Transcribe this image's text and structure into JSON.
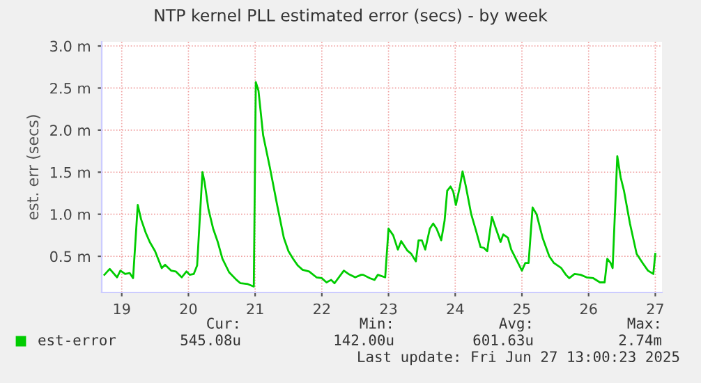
{
  "chart_data": {
    "type": "line",
    "title": "NTP kernel PLL estimated error (secs) - by week",
    "ylabel": "est. err (secs)",
    "x": [
      18.74,
      18.82,
      18.93,
      18.98,
      19.05,
      19.12,
      19.17,
      19.24,
      19.29,
      19.36,
      19.42,
      19.5,
      19.57,
      19.6,
      19.65,
      19.74,
      19.81,
      19.9,
      19.97,
      20.02,
      20.08,
      20.13,
      20.21,
      20.24,
      20.3,
      20.37,
      20.44,
      20.51,
      20.61,
      20.72,
      20.78,
      20.89,
      20.98,
      21.01,
      21.05,
      21.12,
      21.22,
      21.33,
      21.43,
      21.5,
      21.57,
      21.64,
      21.71,
      21.81,
      21.92,
      22.0,
      22.07,
      22.14,
      22.19,
      22.33,
      22.4,
      22.5,
      22.59,
      22.62,
      22.72,
      22.79,
      22.84,
      22.95,
      23.0,
      23.07,
      23.14,
      23.19,
      23.28,
      23.34,
      23.41,
      23.45,
      23.5,
      23.55,
      23.62,
      23.67,
      23.72,
      23.79,
      23.84,
      23.88,
      23.93,
      23.97,
      24.01,
      24.07,
      24.11,
      24.16,
      24.24,
      24.31,
      24.38,
      24.43,
      24.48,
      24.55,
      24.61,
      24.68,
      24.72,
      24.79,
      24.84,
      24.93,
      25.0,
      25.05,
      25.1,
      25.16,
      25.22,
      25.31,
      25.41,
      25.48,
      25.59,
      25.66,
      25.71,
      25.79,
      25.88,
      25.97,
      26.07,
      26.17,
      26.24,
      26.28,
      26.33,
      26.36,
      26.43,
      26.48,
      26.53,
      26.62,
      26.72,
      26.81,
      26.89,
      26.97,
      27.0
    ],
    "series": [
      {
        "name": "est-error",
        "color": "#00cc00",
        "values": [
          0.28,
          0.35,
          0.25,
          0.33,
          0.29,
          0.3,
          0.24,
          1.11,
          0.94,
          0.78,
          0.67,
          0.56,
          0.42,
          0.36,
          0.4,
          0.33,
          0.32,
          0.25,
          0.32,
          0.28,
          0.29,
          0.39,
          1.5,
          1.39,
          1.06,
          0.83,
          0.67,
          0.47,
          0.31,
          0.22,
          0.18,
          0.17,
          0.14,
          2.57,
          2.47,
          1.94,
          1.56,
          1.11,
          0.72,
          0.56,
          0.47,
          0.39,
          0.34,
          0.32,
          0.25,
          0.24,
          0.19,
          0.22,
          0.18,
          0.33,
          0.29,
          0.25,
          0.28,
          0.28,
          0.24,
          0.22,
          0.28,
          0.25,
          0.83,
          0.75,
          0.58,
          0.68,
          0.57,
          0.53,
          0.44,
          0.69,
          0.69,
          0.58,
          0.83,
          0.89,
          0.83,
          0.69,
          0.92,
          1.28,
          1.33,
          1.27,
          1.11,
          1.33,
          1.51,
          1.33,
          1.0,
          0.81,
          0.61,
          0.6,
          0.56,
          0.97,
          0.83,
          0.67,
          0.76,
          0.72,
          0.58,
          0.44,
          0.33,
          0.42,
          0.42,
          1.08,
          1.0,
          0.72,
          0.5,
          0.42,
          0.36,
          0.28,
          0.24,
          0.29,
          0.28,
          0.25,
          0.24,
          0.19,
          0.19,
          0.47,
          0.42,
          0.36,
          1.69,
          1.44,
          1.28,
          0.89,
          0.53,
          0.42,
          0.33,
          0.29,
          0.53
        ]
      }
    ],
    "xlim": [
      18.7,
      27.1
    ],
    "xticks": [
      19,
      20,
      21,
      22,
      23,
      24,
      25,
      26,
      27
    ],
    "ylim": [
      0.07,
      3.05
    ],
    "yticks": [
      {
        "value": 0.5,
        "label": "0.5 m"
      },
      {
        "value": 1.0,
        "label": "1.0 m"
      },
      {
        "value": 1.5,
        "label": "1.5 m"
      },
      {
        "value": 2.0,
        "label": "2.0 m"
      },
      {
        "value": 2.5,
        "label": "2.5 m"
      },
      {
        "value": 3.0,
        "label": "3.0 m"
      }
    ],
    "grid": true,
    "legend": "bottom left",
    "marker": "none",
    "line_style": "solid",
    "annotations": [
      "Cur:",
      "Min:",
      "Avg:",
      "Max:",
      "545.08u",
      "142.00u",
      "601.63u",
      "2.74m",
      "Last update: Fri Jun 27 13:00:23 2025"
    ]
  }
}
